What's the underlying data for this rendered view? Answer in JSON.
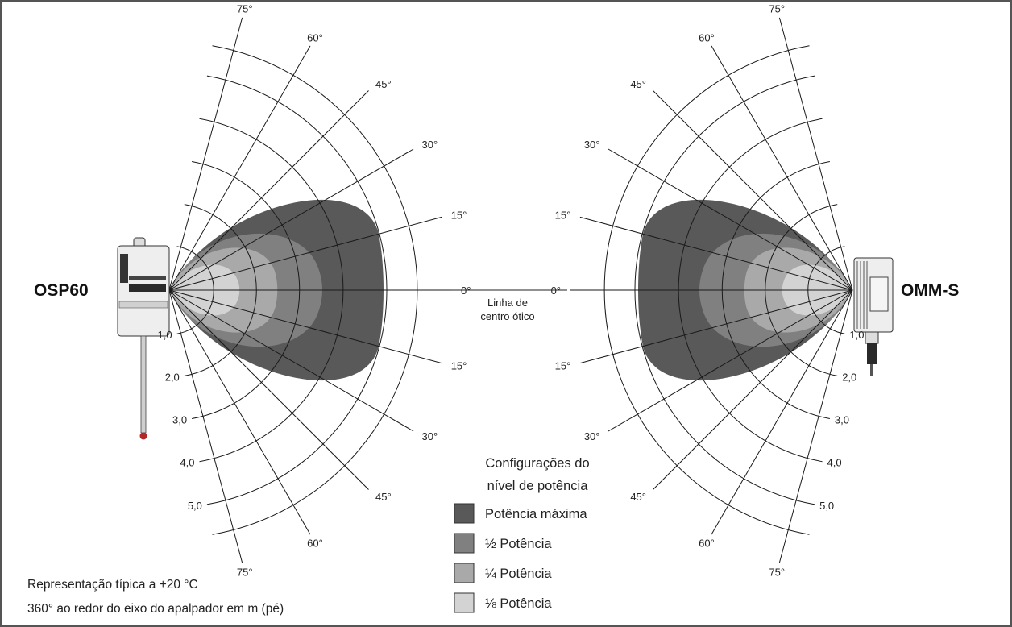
{
  "devices": {
    "left_name": "OSP60",
    "right_name": "OMM-S"
  },
  "centerline": {
    "line1": "Linha de",
    "line2": "centro ótico"
  },
  "angle_labels": {
    "deg0": "0°",
    "deg15": "15°",
    "deg30": "30°",
    "deg45": "45°",
    "deg60": "60°",
    "deg75": "75°"
  },
  "range_labels": {
    "r1": "1,0",
    "r2": "2,0",
    "r3": "3,0",
    "r4": "4,0",
    "r5": "5,0"
  },
  "notes": {
    "line1": "Representação típica a +20 °C",
    "line2": "360° ao redor do eixo do apalpador em m (pé)"
  },
  "legend": {
    "title_line1": "Configurações do",
    "title_line2": "nível de potência",
    "items": [
      {
        "label": "Potência máxima",
        "color": "#595959"
      },
      {
        "label": "½ Potência",
        "color": "#808080"
      },
      {
        "label": "¼ Potência",
        "color": "#a9a9a9"
      },
      {
        "label": "⅛ Potência",
        "color": "#d3d3d3"
      }
    ]
  },
  "colors": {
    "full_power": "#595959",
    "half_power": "#808080",
    "quarter_power": "#a9a9a9",
    "eighth_power": "#d3d3d3"
  }
}
